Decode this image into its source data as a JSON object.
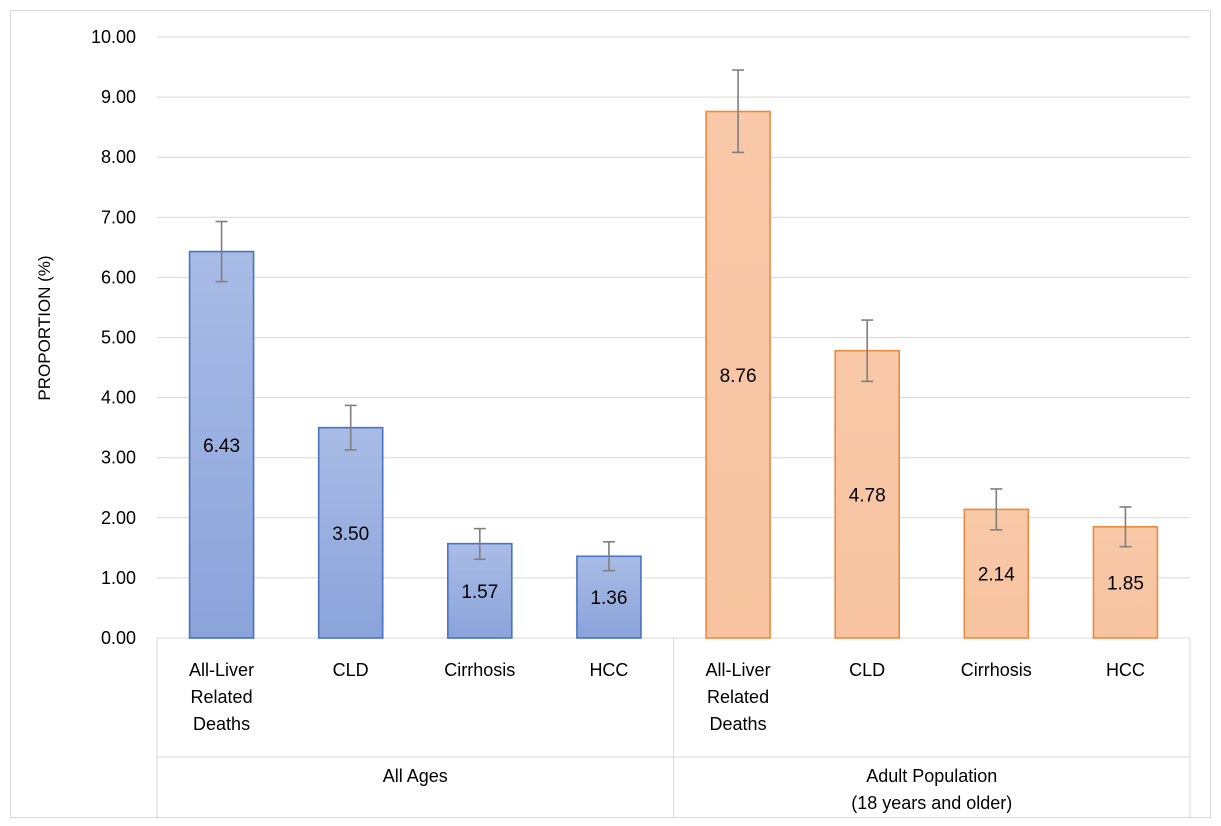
{
  "chart_data": {
    "type": "bar",
    "title": "",
    "xlabel": "",
    "ylabel": "PROPORTION (%)",
    "ylim": [
      0,
      10
    ],
    "y_ticks": [
      "0.00",
      "1.00",
      "2.00",
      "3.00",
      "4.00",
      "5.00",
      "6.00",
      "7.00",
      "8.00",
      "9.00",
      "10.00"
    ],
    "grid": true,
    "legend": "none",
    "groups": [
      {
        "name": "All Ages",
        "name_lines": [
          "All Ages"
        ],
        "color": "#8ea5da",
        "border_color": "#4a72c2",
        "categories": [
          {
            "label_lines": [
              "All-Liver",
              "Related",
              "Deaths"
            ],
            "value": 6.43,
            "label": "6.43",
            "err_low": 5.93,
            "err_high": 6.93
          },
          {
            "label_lines": [
              "CLD"
            ],
            "value": 3.5,
            "label": "3.50",
            "err_low": 3.13,
            "err_high": 3.87
          },
          {
            "label_lines": [
              "Cirrhosis"
            ],
            "value": 1.57,
            "label": "1.57",
            "err_low": 1.31,
            "err_high": 1.82
          },
          {
            "label_lines": [
              "HCC"
            ],
            "value": 1.36,
            "label": "1.36",
            "err_low": 1.12,
            "err_high": 1.6
          }
        ]
      },
      {
        "name": "Adult Population (18 years and older)",
        "name_lines": [
          "Adult Population",
          "(18 years and older)"
        ],
        "color": "#f8c7a7",
        "border_color": "#ec8a3e",
        "categories": [
          {
            "label_lines": [
              "All-Liver",
              "Related",
              "Deaths"
            ],
            "value": 8.76,
            "label": "8.76",
            "err_low": 8.08,
            "err_high": 9.45
          },
          {
            "label_lines": [
              "CLD"
            ],
            "value": 4.78,
            "label": "4.78",
            "err_low": 4.27,
            "err_high": 5.29
          },
          {
            "label_lines": [
              "Cirrhosis"
            ],
            "value": 2.14,
            "label": "2.14",
            "err_low": 1.8,
            "err_high": 2.48
          },
          {
            "label_lines": [
              "HCC"
            ],
            "value": 1.85,
            "label": "1.85",
            "err_low": 1.52,
            "err_high": 2.18
          }
        ]
      }
    ],
    "colors": {
      "grid": "#d9d9d9",
      "axis": "#d9d9d9",
      "error_bar": "#7f7f7f"
    }
  }
}
